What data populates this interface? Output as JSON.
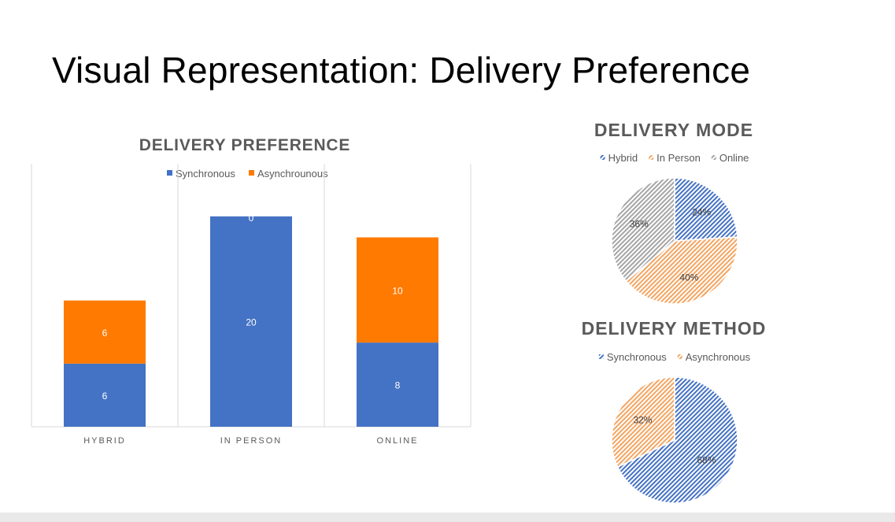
{
  "slide": {
    "title": "Visual Representation: Delivery Preference"
  },
  "colors": {
    "synchronous": "#4472C4",
    "asynchronous": "#FF7A00",
    "online_gray": "#A5A5A5"
  },
  "chart_data": [
    {
      "type": "bar",
      "stacked": true,
      "title": "DELIVERY PREFERENCE",
      "categories": [
        "HYBRID",
        "IN PERSON",
        "ONLINE"
      ],
      "series": [
        {
          "name": "Synchronous",
          "values": [
            6,
            20,
            8
          ],
          "labels": [
            "6",
            "20",
            "8"
          ]
        },
        {
          "name": "Asynchrounous",
          "values": [
            6,
            0,
            10
          ],
          "labels": [
            "6",
            "0",
            "10"
          ]
        }
      ],
      "ylim": [
        0,
        25
      ],
      "grid": false,
      "legend": "top"
    },
    {
      "type": "pie",
      "title": "DELIVERY MODE",
      "labels": [
        "Hybrid",
        "In Person",
        "Online"
      ],
      "values": [
        24,
        40,
        36
      ],
      "value_labels": [
        "24%",
        "40%",
        "36%"
      ],
      "legend": "top"
    },
    {
      "type": "pie",
      "title": "DELIVERY METHOD",
      "labels": [
        "Synchronous",
        "Asynchronous"
      ],
      "values": [
        68,
        32
      ],
      "value_labels": [
        "68%",
        "32%"
      ],
      "legend": "top"
    }
  ]
}
